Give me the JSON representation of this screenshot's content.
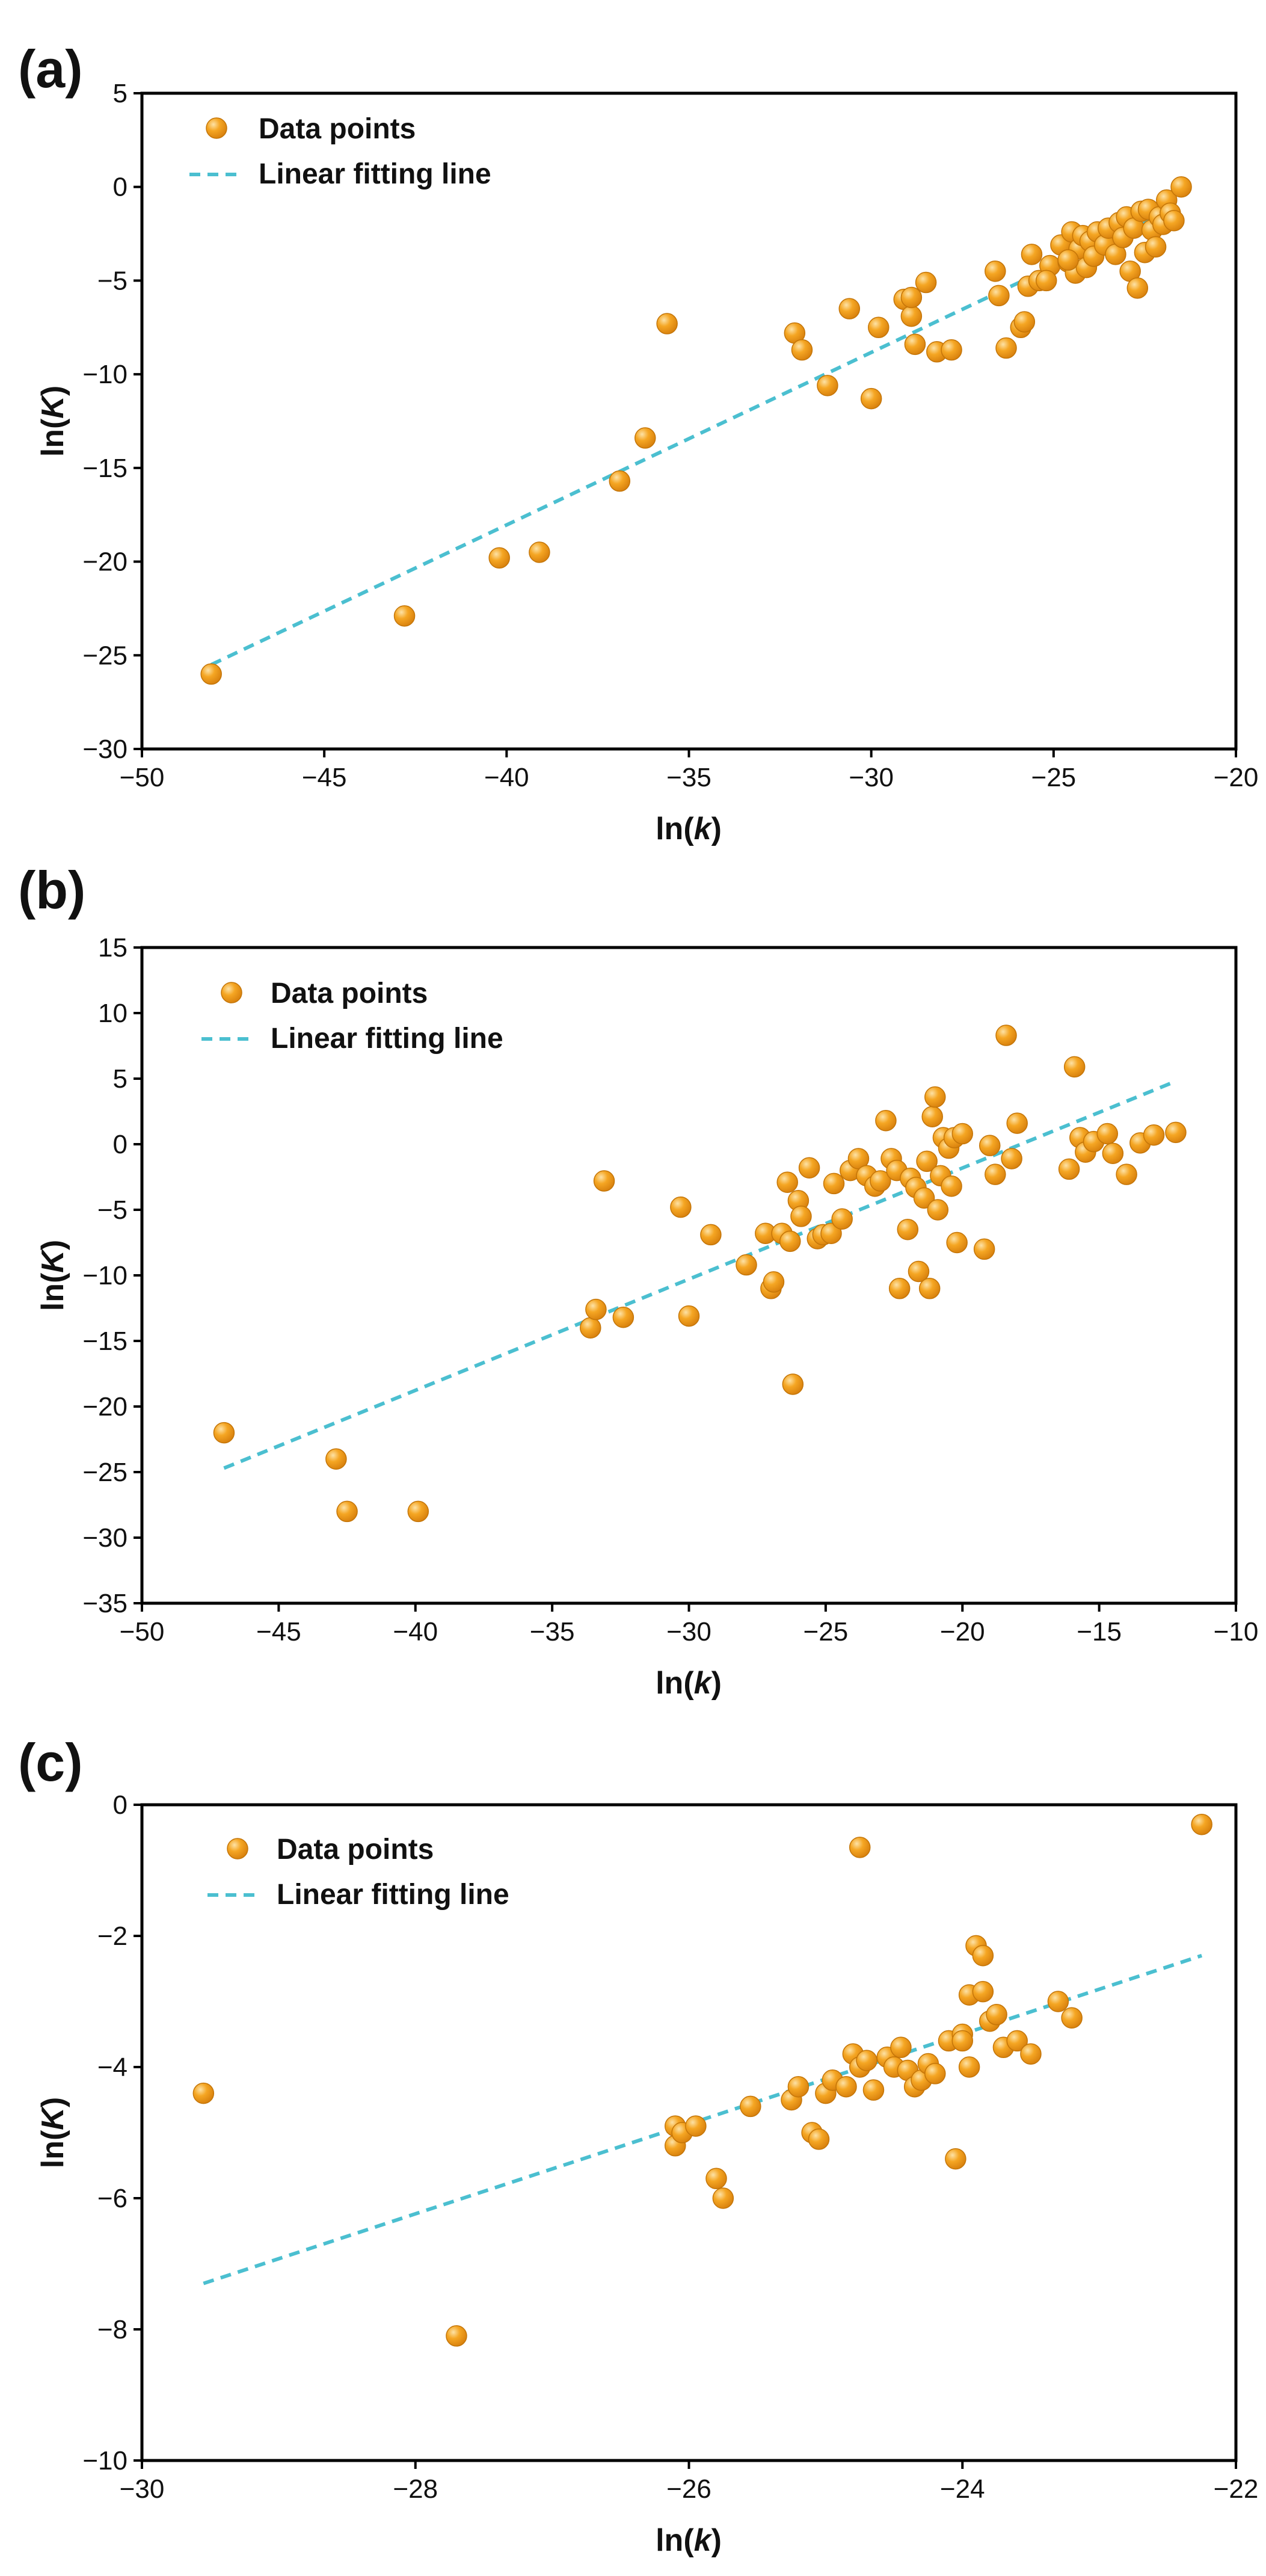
{
  "colors": {
    "point": "#f5a623",
    "point_dark": "#d9820e",
    "point_light": "#fde2a6",
    "fit_line": "#4bbfd0",
    "frame": "#000000"
  },
  "chart_data": [
    {
      "panel_label": "(a)",
      "type": "scatter",
      "xlabel": "ln(k)",
      "ylabel": "ln(K)",
      "xlim": [
        -50,
        -20
      ],
      "ylim": [
        -30,
        5
      ],
      "xticks": [
        -50,
        -45,
        -40,
        -35,
        -30,
        -25,
        -20
      ],
      "yticks": [
        -30,
        -25,
        -20,
        -15,
        -10,
        -5,
        0,
        5
      ],
      "legend": {
        "position": "top-left",
        "points_label": "Data points",
        "line_label": "Linear fitting line"
      },
      "fit_line": {
        "x": [
          -48.1,
          -21.6
        ],
        "y": [
          -25.5,
          -1.1
        ]
      },
      "x": [
        -48.1,
        -42.8,
        -40.2,
        -39.1,
        -36.9,
        -36.2,
        -35.6,
        -32.1,
        -31.9,
        -31.2,
        -30.6,
        -30.0,
        -29.8,
        -29.1,
        -28.9,
        -28.8,
        -28.9,
        -28.5,
        -28.2,
        -27.8,
        -26.6,
        -26.5,
        -26.3,
        -25.9,
        -25.8,
        -25.7,
        -25.6,
        -25.4,
        -25.1,
        -24.8,
        -24.6,
        -24.5,
        -24.4,
        -24.3,
        -24.2,
        -24.1,
        -24.0,
        -23.9,
        -23.8,
        -23.6,
        -23.5,
        -23.3,
        -23.2,
        -23.1,
        -23.0,
        -22.9,
        -22.8,
        -22.7,
        -22.6,
        -22.5,
        -22.4,
        -22.3,
        -22.2,
        -22.1,
        -22.0,
        -21.9,
        -21.8,
        -21.7,
        -21.5,
        -24.6,
        -25.2
      ],
      "y": [
        -26.0,
        -22.9,
        -19.8,
        -19.5,
        -15.7,
        -13.4,
        -7.3,
        -7.8,
        -8.7,
        -10.6,
        -6.5,
        -11.3,
        -7.5,
        -6.0,
        -6.9,
        -8.4,
        -5.9,
        -5.1,
        -8.8,
        -8.7,
        -4.5,
        -5.8,
        -8.6,
        -7.5,
        -7.2,
        -5.3,
        -3.6,
        -5.0,
        -4.2,
        -3.1,
        -4.0,
        -2.4,
        -4.6,
        -3.3,
        -2.6,
        -4.3,
        -2.9,
        -3.7,
        -2.4,
        -3.1,
        -2.2,
        -3.6,
        -1.9,
        -2.7,
        -1.6,
        -4.5,
        -2.2,
        -5.4,
        -1.3,
        -3.5,
        -1.2,
        -2.3,
        -3.2,
        -1.6,
        -2.0,
        -0.7,
        -1.4,
        -1.8,
        0.0,
        -3.9,
        -5.0
      ]
    },
    {
      "panel_label": "(b)",
      "type": "scatter",
      "xlabel": "ln(k)",
      "ylabel": "ln(K)",
      "xlim": [
        -50,
        -10
      ],
      "ylim": [
        -35,
        15
      ],
      "xticks": [
        -50,
        -45,
        -40,
        -35,
        -30,
        -25,
        -20,
        -15,
        -10
      ],
      "yticks": [
        -35,
        -30,
        -25,
        -20,
        -15,
        -10,
        -5,
        0,
        5,
        10,
        15
      ],
      "legend": {
        "position": "top-left",
        "points_label": "Data points",
        "line_label": "Linear fitting line"
      },
      "fit_line": {
        "x": [
          -47.0,
          -12.2
        ],
        "y": [
          -24.7,
          4.8
        ]
      },
      "x": [
        -47.0,
        -42.9,
        -42.5,
        -39.9,
        -33.6,
        -33.4,
        -33.1,
        -32.4,
        -30.3,
        -30.0,
        -29.2,
        -27.9,
        -27.2,
        -27.0,
        -26.9,
        -26.6,
        -26.4,
        -26.2,
        -26.0,
        -25.9,
        -25.6,
        -25.3,
        -25.1,
        -24.8,
        -24.7,
        -24.4,
        -24.1,
        -23.8,
        -23.5,
        -23.2,
        -23.0,
        -22.8,
        -22.6,
        -22.4,
        -22.3,
        -22.0,
        -21.9,
        -21.7,
        -21.6,
        -21.4,
        -21.3,
        -21.2,
        -21.1,
        -21.0,
        -20.9,
        -20.8,
        -20.7,
        -20.5,
        -20.4,
        -20.3,
        -20.2,
        -20.0,
        -19.2,
        -19.0,
        -18.8,
        -18.4,
        -18.2,
        -18.0,
        -16.1,
        -15.9,
        -15.7,
        -15.5,
        -15.2,
        -14.7,
        -14.5,
        -14.0,
        -13.5,
        -13.0,
        -12.2,
        -26.3
      ],
      "y": [
        -22.0,
        -24.0,
        -28.0,
        -28.0,
        -14.0,
        -12.6,
        -2.8,
        -13.2,
        -4.8,
        -13.1,
        -6.9,
        -9.2,
        -6.8,
        -11.0,
        -10.5,
        -6.8,
        -2.9,
        -18.3,
        -4.3,
        -5.5,
        -1.8,
        -7.2,
        -6.9,
        -6.8,
        -3.0,
        -5.7,
        -2.0,
        -1.1,
        -2.4,
        -3.2,
        -2.8,
        1.8,
        -1.1,
        -2.0,
        -11.0,
        -6.5,
        -2.6,
        -3.3,
        -9.7,
        -4.1,
        -1.3,
        -11.0,
        2.1,
        3.6,
        -5.0,
        -2.4,
        0.5,
        -0.3,
        -3.2,
        0.5,
        -7.5,
        0.8,
        -8.0,
        -0.1,
        -2.3,
        8.3,
        -1.1,
        1.6,
        -1.9,
        5.9,
        0.5,
        -0.6,
        0.2,
        0.8,
        -0.7,
        -2.3,
        0.1,
        0.7,
        0.9,
        -7.4
      ],
      "fit_note": ""
    },
    {
      "panel_label": "(c)",
      "type": "scatter",
      "xlabel": "ln(k)",
      "ylabel": "ln(K)",
      "xlim": [
        -30,
        -22
      ],
      "ylim": [
        -10,
        0
      ],
      "xticks": [
        -30,
        -28,
        -26,
        -24,
        -22
      ],
      "yticks": [
        -10,
        -8,
        -6,
        -4,
        -2,
        0
      ],
      "legend": {
        "position": "top-left",
        "points_label": "Data points",
        "line_label": "Linear fitting line"
      },
      "fit_line": {
        "x": [
          -29.55,
          -22.25
        ],
        "y": [
          -7.3,
          -2.3
        ]
      },
      "x": [
        -29.55,
        -27.7,
        -26.1,
        -26.1,
        -26.05,
        -25.95,
        -25.8,
        -25.75,
        -25.55,
        -25.25,
        -25.2,
        -25.1,
        -25.05,
        -25.0,
        -24.95,
        -24.85,
        -24.8,
        -24.75,
        -24.7,
        -24.65,
        -24.55,
        -24.5,
        -24.45,
        -24.4,
        -24.35,
        -24.3,
        -24.25,
        -24.2,
        -24.1,
        -24.05,
        -24.0,
        -23.95,
        -23.9,
        -23.85,
        -23.8,
        -23.75,
        -23.7,
        -23.6,
        -23.5,
        -23.3,
        -23.2,
        -22.25,
        -24.75,
        -23.95,
        -24.0,
        -23.85
      ],
      "y": [
        -4.4,
        -8.1,
        -5.2,
        -4.9,
        -5.0,
        -4.9,
        -5.7,
        -6.0,
        -4.6,
        -4.5,
        -4.3,
        -5.0,
        -5.1,
        -4.4,
        -4.2,
        -4.3,
        -3.8,
        -4.0,
        -3.9,
        -4.35,
        -3.85,
        -4.0,
        -3.7,
        -4.05,
        -4.3,
        -4.2,
        -3.95,
        -4.1,
        -3.6,
        -5.4,
        -3.5,
        -2.9,
        -2.15,
        -2.3,
        -3.3,
        -3.2,
        -3.7,
        -3.6,
        -3.8,
        -3.0,
        -3.25,
        -0.3,
        -0.65,
        -4.0,
        -3.6,
        -2.85
      ]
    }
  ]
}
